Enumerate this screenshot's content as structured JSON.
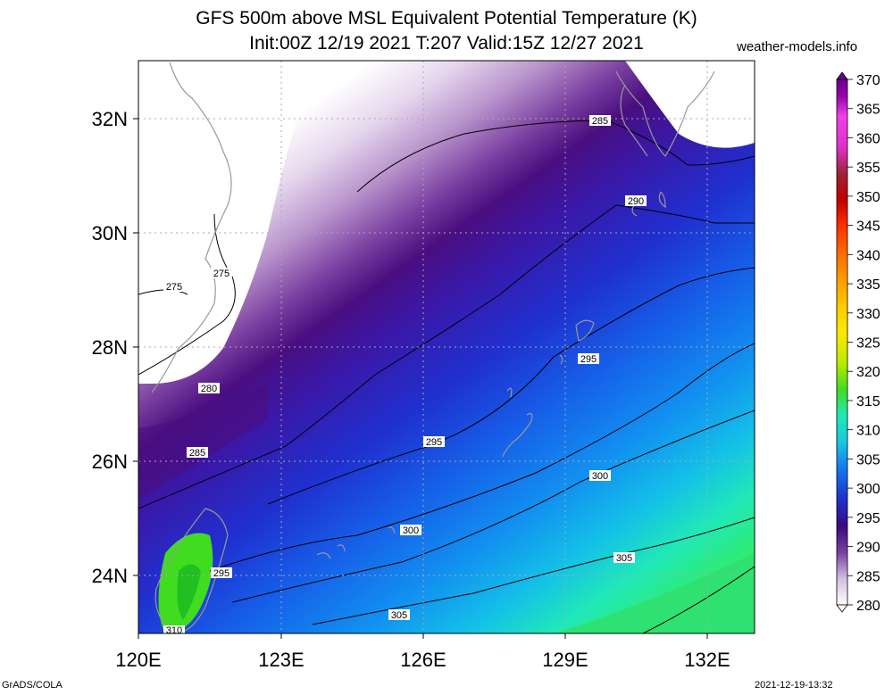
{
  "header": {
    "title": "GFS 500m above MSL Equivalent Potential Temperature (K)",
    "subtitle": "Init:00Z 12/19 2021 T:207 Valid:15Z 12/27 2021",
    "source": "weather-models.info"
  },
  "map": {
    "lon_labels": [
      "120E",
      "123E",
      "126E",
      "129E",
      "132E"
    ],
    "lat_labels": [
      "32N",
      "30N",
      "28N",
      "26N",
      "24N"
    ],
    "lon_range": [
      120,
      133
    ],
    "lat_range": [
      23,
      33
    ],
    "contour_labels": [
      "285",
      "290",
      "275",
      "275",
      "280",
      "285",
      "295",
      "295",
      "300",
      "300",
      "305",
      "305",
      "295",
      "310"
    ]
  },
  "colorbar": {
    "ticks": [
      "370",
      "365",
      "360",
      "355",
      "350",
      "345",
      "340",
      "335",
      "330",
      "325",
      "320",
      "315",
      "310",
      "305",
      "300",
      "295",
      "290",
      "285",
      "280"
    ],
    "colors": [
      "#ffffff",
      "#e8dcef",
      "#d2bee3",
      "#b995cc",
      "#9a6cb8",
      "#7a3fa0",
      "#5a1785",
      "#3a0a80",
      "#2a1aa8",
      "#1f30c8",
      "#1850e8",
      "#1478f0",
      "#10a0f0",
      "#18c8e0",
      "#20e8b8",
      "#30ec70",
      "#40dc20",
      "#b8ec00",
      "#ffe800",
      "#ffc800",
      "#ff9a00",
      "#ff6a00",
      "#ff3000",
      "#e00000",
      "#b80000",
      "#a02038",
      "#c02890",
      "#e030c8",
      "#f040e8",
      "#c000d0",
      "#9000a8",
      "#6a0090"
    ]
  },
  "footer": {
    "left": "GrADS/COLA",
    "right": "2021-12-19-13:32"
  }
}
